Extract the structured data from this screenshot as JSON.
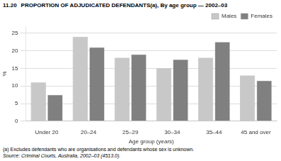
{
  "chart_data": {
    "type": "bar",
    "title": "11.20",
    "subtitle": "PROPORTION OF ADJUDICATED DEFENDANTS(a), By age group — 2002–03",
    "categories": [
      "Under 20",
      "20–24",
      "25–29",
      "30–34",
      "35–44",
      "45 and over"
    ],
    "series": [
      {
        "name": "Males",
        "color": "#c8c8c8",
        "values": [
          11,
          24,
          18,
          15,
          18,
          13
        ]
      },
      {
        "name": "Females",
        "color": "#808080",
        "values": [
          7.5,
          21,
          19,
          17.5,
          22.5,
          11.5
        ]
      }
    ],
    "xlabel": "Age group (years)",
    "ylabel": "%",
    "ylim": [
      0,
      27
    ],
    "yticks": [
      0,
      5,
      10,
      15,
      20,
      25
    ],
    "grid": true,
    "legend": "upper right",
    "annotations": [
      "(a) Excludes defendants who are organisations and defendants whose sex is unknown.",
      "Source: Criminal Courts, Australia, 2002–03 (4513.0)."
    ]
  }
}
